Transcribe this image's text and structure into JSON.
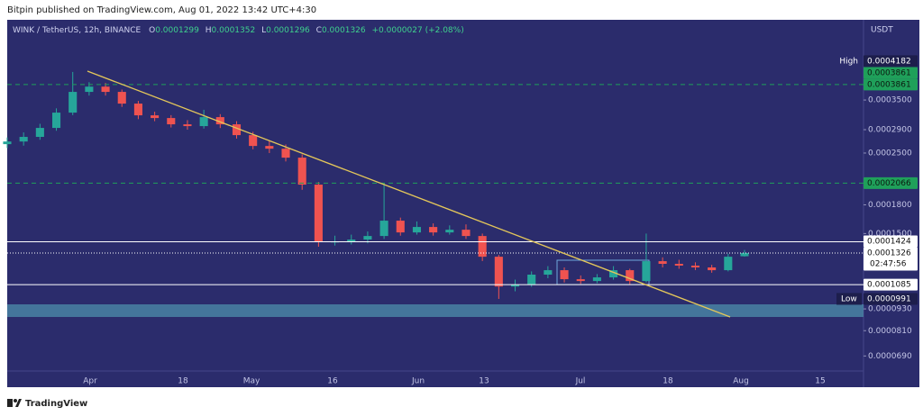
{
  "header": "Bitpin published on TradingView.com, Aug 01, 2022 13:42 UTC+4:30",
  "footer": "TradingView",
  "chart_data": {
    "type": "candlestick",
    "symbol": "WINK / TetherUS, 12h, BINANCE",
    "legend": [
      {
        "key": "O",
        "value": "0.0001299"
      },
      {
        "key": "H",
        "value": "0.0001352"
      },
      {
        "key": "L",
        "value": "0.0001296"
      },
      {
        "key": "C",
        "value": "0.0001326"
      }
    ],
    "change": "+0.0000027 (+2.08%)",
    "currency": "USDT",
    "log_scale": true,
    "grid": false,
    "up_color": "#26a69a",
    "down_color": "#ef5350",
    "ylim": [
      5.66e-05,
      0.0005822
    ],
    "yticks": [
      {
        "value": 0.00035,
        "label": "0.0003500"
      },
      {
        "value": 0.00029,
        "label": "0.0002900"
      },
      {
        "value": 0.00025,
        "label": "0.0002500"
      },
      {
        "value": 0.00018,
        "label": "0.0001800"
      },
      {
        "value": 0.00015,
        "label": "0.0001500"
      },
      {
        "value": 9.3e-05,
        "label": "0.0000930"
      },
      {
        "value": 8.1e-05,
        "label": "0.0000810"
      },
      {
        "value": 6.9e-05,
        "label": "0.0000690"
      }
    ],
    "xtick_labels": [
      "Apr",
      "18",
      "May",
      "16",
      "Jun",
      "13",
      "Jul",
      "18",
      "Aug",
      "15"
    ],
    "open": [
      0.0002645,
      0.000269,
      0.000277,
      0.0002932,
      0.0003231,
      0.0003685,
      0.000381,
      0.0003685,
      0.0003421,
      0.0003176,
      0.0003122,
      0.0003,
      0.0002966,
      0.000314,
      0.0003,
      0.0002801,
      0.0002615,
      0.000257,
      0.0002428,
      0.0002046,
      0.0001426,
      0.0001426,
      0.0001444,
      0.0001477,
      0.0001628,
      0.0001511,
      0.0001564,
      0.0001511,
      0.0001537,
      0.0001477,
      0.0001295,
      0.0001072,
      0.0001085,
      0.0001156,
      0.0001189,
      0.0001123,
      0.000111,
      0.0001136,
      0.0001189,
      0.000111,
      0.0001259,
      0.0001238,
      0.0001224,
      0.000121,
      0.0001189,
      0.0001299
    ],
    "high": [
      0.000276,
      0.000285,
      0.000301,
      0.000332,
      0.0004182,
      0.000392,
      0.00039,
      0.000374,
      0.000348,
      0.000325,
      0.000318,
      0.000308,
      0.000329,
      0.00032,
      0.000306,
      0.000286,
      0.00027,
      0.000264,
      0.000248,
      0.000208,
      0.000148,
      0.000149,
      0.000152,
      0.0002066,
      0.000166,
      0.000162,
      0.00016,
      0.000158,
      0.000159,
      0.00015,
      0.000131,
      0.000112,
      0.000118,
      0.000122,
      0.000121,
      0.000115,
      0.000116,
      0.000122,
      0.00012,
      0.00015,
      0.000129,
      0.000127,
      0.000125,
      0.000123,
      0.000132,
      0.0001352
    ],
    "low": [
      0.000258,
      0.000262,
      0.000272,
      0.000288,
      0.000318,
      0.00036,
      0.00036,
      0.000335,
      0.00031,
      0.000306,
      0.000294,
      0.00029,
      0.000292,
      0.000293,
      0.000274,
      0.000256,
      0.00025,
      0.000237,
      0.000198,
      0.000138,
      0.000139,
      0.00014,
      0.000141,
      0.000145,
      0.000148,
      0.000149,
      0.000148,
      0.000149,
      0.000145,
      0.000126,
      9.91e-05,
      0.000104,
      0.000107,
      0.000113,
      0.00011,
      0.000109,
      0.0001095,
      0.000112,
      0.0001085,
      0.00011,
      0.000121,
      0.00012,
      0.000119,
      0.000117,
      0.000118,
      0.0001296
    ],
    "close": [
      0.000269,
      0.000277,
      0.0002932,
      0.0003231,
      0.0003685,
      0.000381,
      0.0003685,
      0.0003421,
      0.0003176,
      0.0003122,
      0.0003,
      0.0002966,
      0.000314,
      0.0003,
      0.0002801,
      0.0002615,
      0.000257,
      0.0002428,
      0.0002046,
      0.0001426,
      0.0001426,
      0.0001444,
      0.0001477,
      0.0001628,
      0.0001511,
      0.0001564,
      0.0001511,
      0.0001537,
      0.0001477,
      0.0001295,
      0.0001072,
      0.0001085,
      0.0001156,
      0.0001189,
      0.0001123,
      0.000111,
      0.0001136,
      0.0001189,
      0.000111,
      0.0001259,
      0.0001238,
      0.0001224,
      0.000121,
      0.0001189,
      0.0001295,
      0.0001326
    ],
    "markers": [
      {
        "label": "High",
        "value": 0.0004182
      }
    ],
    "levels": [
      {
        "value": 0.0003861,
        "color": "#1fa05a",
        "text_color": "#0b1a10",
        "line": "none"
      },
      {
        "value": 0.0003861,
        "color": "#1fa05a",
        "text_color": "#0b1a10",
        "line": "dashed"
      },
      {
        "value": 0.0002066,
        "color": "#1fa05a",
        "text_color": "#0b1a10",
        "line": "dashed"
      },
      {
        "value": 0.0001424,
        "color": "#ffffff",
        "text_color": "#111111",
        "line": "solid"
      },
      {
        "value": 0.0001326,
        "color": "#ffffff",
        "text_color": "#111111",
        "line": "dotted",
        "countdown": "02:47:56"
      },
      {
        "value": 0.0001085,
        "color": "#ffffff",
        "text_color": "#111111",
        "line": "solid"
      }
    ],
    "low_marker": {
      "label": "Low",
      "value": 9.91e-05
    }
  }
}
